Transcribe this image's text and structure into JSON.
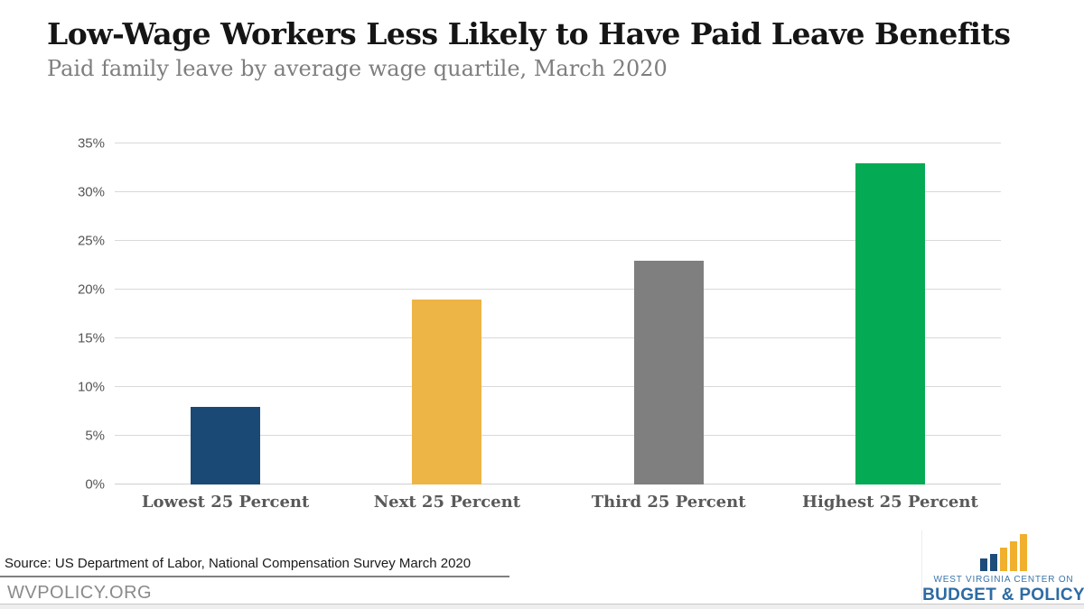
{
  "chart_data": {
    "type": "bar",
    "title": "Low-Wage Workers Less Likely to Have Paid Leave Benefits",
    "subtitle": "Paid family leave by average wage quartile, March 2020",
    "categories": [
      "Lowest 25 Percent",
      "Next 25 Percent",
      "Third 25 Percent",
      "Highest 25 Percent"
    ],
    "values": [
      8,
      19,
      23,
      33
    ],
    "unit": "%",
    "colors": [
      "#1b4975",
      "#edb446",
      "#7f7f7f",
      "#05aa55"
    ],
    "xlabel": "",
    "ylabel": "",
    "ylim": [
      0,
      35
    ],
    "yticks": [
      0,
      5,
      10,
      15,
      20,
      25,
      30,
      35
    ],
    "ytick_suffix": "%",
    "grid": true,
    "legend": "none"
  },
  "footer": {
    "source": "Source: US Department of Labor, National Compensation Survey March 2020",
    "website": "WVPOLICY.ORG"
  },
  "logo": {
    "icon": "ascending-bars-icon",
    "line1": "WEST VIRGINIA CENTER ON",
    "line2": "BUDGET & POLICY",
    "colors": {
      "blue": "#1e4d79",
      "gold": "#f0af2d",
      "text": "#2d6ba3"
    }
  }
}
